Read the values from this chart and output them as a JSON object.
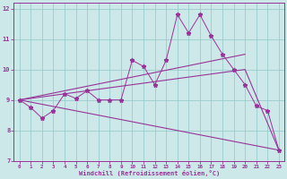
{
  "xlabel": "Windchill (Refroidissement éolien,°C)",
  "xlim": [
    -0.5,
    23.5
  ],
  "ylim": [
    7,
    12.2
  ],
  "yticks": [
    7,
    8,
    9,
    10,
    11,
    12
  ],
  "xticks": [
    0,
    1,
    2,
    3,
    4,
    5,
    6,
    7,
    8,
    9,
    10,
    11,
    12,
    13,
    14,
    15,
    16,
    17,
    18,
    19,
    20,
    21,
    22,
    23
  ],
  "background_color": "#cce8e8",
  "line_color": "#993399",
  "grid_color": "#99cccc",
  "series1_x": [
    0,
    1,
    2,
    3,
    4,
    5,
    6,
    7,
    8,
    9,
    10,
    11,
    12,
    13,
    14,
    15,
    16,
    17,
    18,
    19,
    20,
    21,
    22,
    23
  ],
  "series1_y": [
    9.0,
    8.75,
    8.4,
    8.65,
    9.2,
    9.05,
    9.3,
    9.0,
    9.0,
    9.0,
    10.3,
    10.1,
    9.5,
    10.3,
    11.8,
    11.2,
    11.8,
    11.1,
    10.5,
    10.0,
    9.5,
    8.8,
    8.65,
    7.35
  ],
  "series2_x": [
    0,
    20
  ],
  "series2_y": [
    9.0,
    10.5
  ],
  "series3_x": [
    0,
    20,
    23
  ],
  "series3_y": [
    9.0,
    10.0,
    7.35
  ],
  "series4_x": [
    0,
    23
  ],
  "series4_y": [
    9.0,
    7.35
  ]
}
